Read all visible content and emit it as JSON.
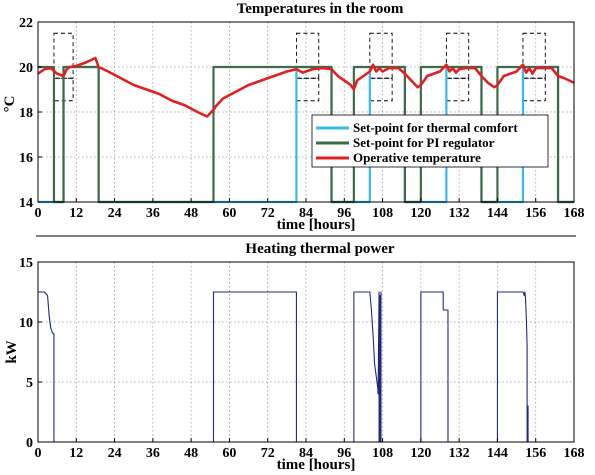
{
  "colors": {
    "comfort": "#33bbee",
    "pi": "#3e6b48",
    "operative": "#e02020",
    "power": "#1f2a7a",
    "grid": "#999999",
    "dashed": "#000000"
  },
  "chart_data": [
    {
      "type": "line",
      "title": "Temperatures in the room",
      "xlabel": "time [hours]",
      "ylabel": "°C",
      "xlim": [
        0,
        168
      ],
      "ylim": [
        14,
        22
      ],
      "xticks": [
        0,
        12,
        24,
        36,
        48,
        60,
        72,
        84,
        96,
        108,
        120,
        132,
        144,
        156,
        168
      ],
      "yticks": [
        14,
        16,
        18,
        20,
        22
      ],
      "grid": true,
      "legend_position": "center-right",
      "series": [
        {
          "name": "Set-point for thermal comfort",
          "color_key": "comfort",
          "x": [
            0,
            8,
            8,
            19,
            19,
            81,
            81,
            92,
            92,
            104,
            104,
            115,
            115,
            128,
            128,
            139,
            139,
            152,
            152,
            163,
            163,
            168
          ],
          "y": [
            14,
            14,
            20,
            20,
            14,
            14,
            20,
            20,
            14,
            14,
            20,
            20,
            14,
            14,
            20,
            20,
            14,
            14,
            20,
            20,
            14,
            14
          ]
        },
        {
          "name": "Set-point for PI regulator",
          "color_key": "pi",
          "x": [
            0,
            5,
            5,
            8,
            8,
            19,
            19,
            55,
            55,
            92,
            92,
            99,
            99,
            115,
            115,
            120,
            120,
            139,
            139,
            144,
            144,
            163,
            163,
            168
          ],
          "y": [
            20,
            20,
            14,
            14,
            20,
            20,
            14,
            14,
            20,
            20,
            14,
            14,
            20,
            20,
            14,
            14,
            20,
            20,
            14,
            14,
            20,
            20,
            14,
            14
          ]
        },
        {
          "name": "Operative temperature",
          "color_key": "operative",
          "x": [
            0,
            2,
            4,
            6,
            8,
            9,
            10,
            12,
            15,
            18,
            19,
            22,
            26,
            30,
            34,
            38,
            42,
            46,
            50,
            53,
            55,
            56,
            58,
            62,
            66,
            70,
            74,
            78,
            81,
            83,
            86,
            89,
            92,
            94,
            96,
            98,
            99,
            100,
            102,
            104,
            105,
            106,
            107,
            108,
            110,
            113,
            115,
            117,
            119,
            120,
            122,
            126,
            128,
            129,
            130,
            131,
            132,
            134,
            137,
            139,
            141,
            143,
            144,
            146,
            150,
            152,
            153,
            154,
            155,
            156,
            158,
            161,
            163,
            165,
            168
          ],
          "y": [
            19.7,
            19.9,
            19.95,
            19.7,
            19.6,
            19.9,
            20.0,
            20.05,
            20.2,
            20.4,
            20.0,
            19.8,
            19.5,
            19.2,
            19.0,
            18.8,
            18.5,
            18.3,
            18.0,
            17.8,
            18.1,
            18.3,
            18.6,
            18.9,
            19.2,
            19.4,
            19.6,
            19.8,
            19.9,
            19.75,
            19.9,
            19.95,
            19.9,
            19.6,
            19.4,
            19.2,
            19.0,
            19.4,
            19.6,
            19.8,
            20.1,
            19.8,
            19.95,
            19.8,
            19.95,
            19.95,
            19.7,
            19.4,
            19.1,
            19.2,
            19.6,
            19.8,
            20.1,
            19.8,
            19.95,
            19.75,
            19.9,
            19.95,
            19.95,
            19.6,
            19.3,
            19.1,
            19.2,
            19.6,
            19.8,
            20.1,
            19.75,
            19.95,
            19.7,
            19.95,
            19.95,
            19.95,
            19.6,
            19.5,
            19.3
          ]
        }
      ],
      "dashed_bands": [
        {
          "x_start": 5,
          "x_end": 11
        },
        {
          "x_start": 81,
          "x_end": 88
        },
        {
          "x_start": 104,
          "x_end": 111
        },
        {
          "x_start": 128,
          "x_end": 135
        },
        {
          "x_start": 152,
          "x_end": 159
        }
      ],
      "dashed_levels": [
        21.5,
        19.5,
        18.5
      ]
    },
    {
      "type": "line",
      "title": "Heating thermal power",
      "xlabel": "time [hours]",
      "ylabel": "kW",
      "xlim": [
        0,
        168
      ],
      "ylim": [
        0,
        15
      ],
      "xticks": [
        0,
        12,
        24,
        36,
        48,
        60,
        72,
        84,
        96,
        108,
        120,
        132,
        144,
        156,
        168
      ],
      "yticks": [
        0,
        5,
        10,
        15
      ],
      "grid": true,
      "series": [
        {
          "color_key": "power",
          "x": [
            0,
            2,
            3,
            3.5,
            4,
            4.5,
            5,
            5,
            55,
            55,
            81,
            81,
            99,
            99,
            104,
            104.5,
            105,
            105.5,
            106,
            106.5,
            106.6,
            106.9,
            106.9,
            107.2,
            107.2,
            107.5,
            107.5,
            108,
            108,
            120,
            120,
            127,
            127,
            128.5,
            128.5,
            144,
            144,
            152,
            152.2,
            152.4,
            152.6,
            152.8,
            153.1,
            153.3,
            153.3,
            153.6,
            153.6,
            168
          ],
          "y": [
            12.5,
            12.5,
            12.2,
            10.5,
            9.5,
            9.1,
            9.0,
            0,
            0,
            12.5,
            12.5,
            0,
            0,
            12.5,
            12.5,
            11,
            9,
            6.5,
            5.5,
            4.5,
            4.0,
            12.5,
            0,
            12.2,
            0,
            12.5,
            0,
            0,
            0,
            0,
            12.5,
            12.5,
            11,
            11,
            0,
            0,
            12.5,
            12.5,
            12.4,
            12.2,
            12.5,
            12.0,
            10.0,
            8.0,
            0,
            3.0,
            0,
            0
          ]
        }
      ]
    }
  ]
}
